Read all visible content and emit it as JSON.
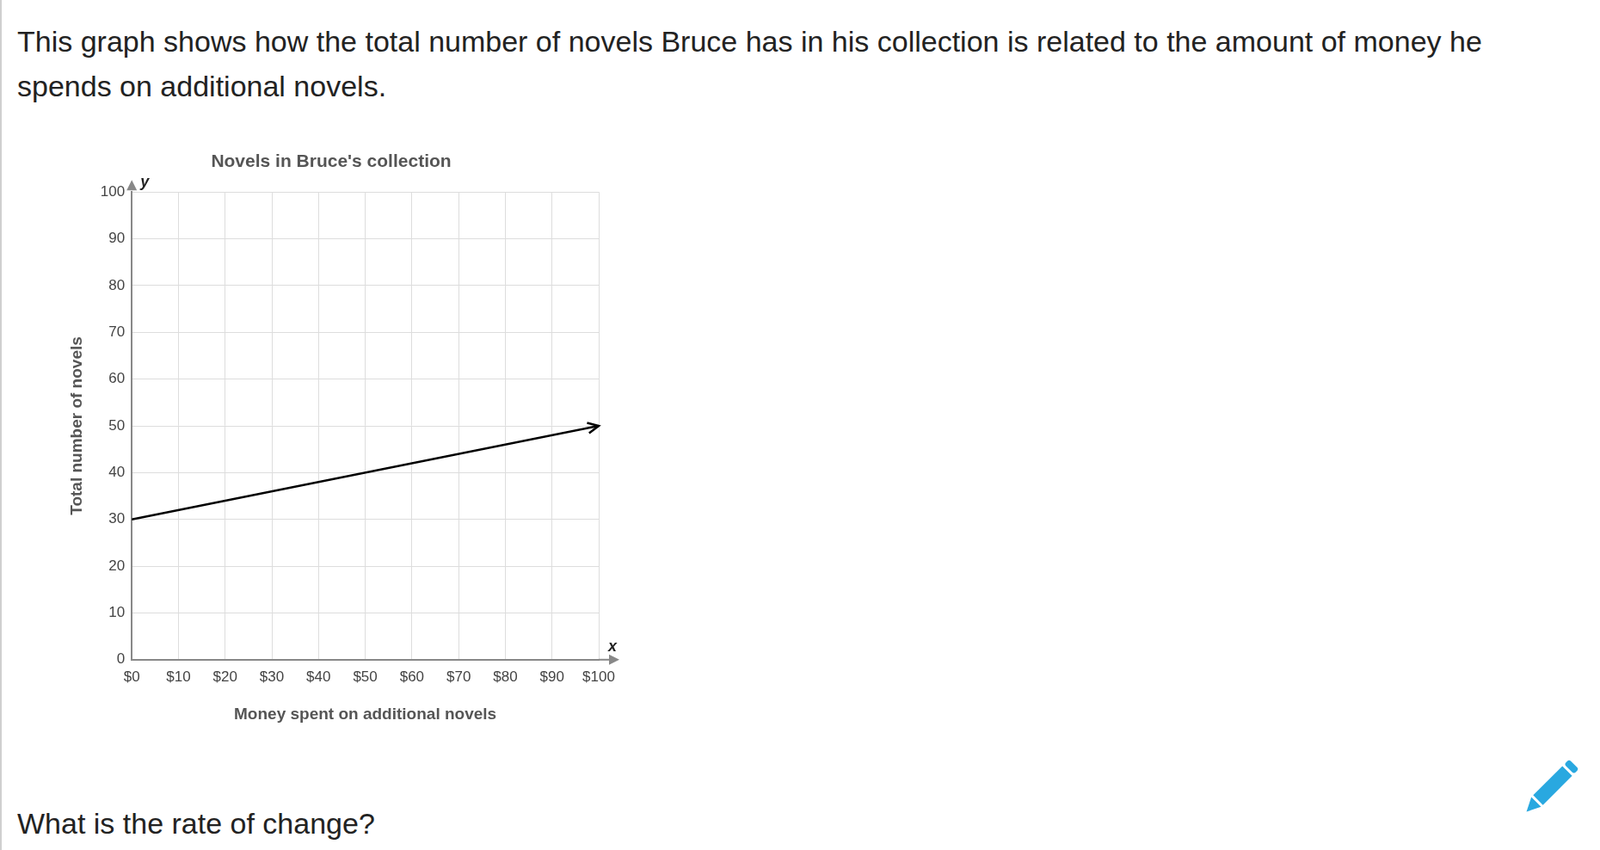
{
  "page": {
    "intro": "This graph shows how the total number of novels Bruce has in his collection is related to the amount of money he spends on additional novels.",
    "question": "What is the rate of change?"
  },
  "chart_data": {
    "type": "line",
    "title": "Novels in Bruce's collection",
    "x_label": "Money spent on additional novels",
    "y_label": "Total number of novels",
    "x_axis_name": "x",
    "y_axis_name": "y",
    "x": [
      0,
      100
    ],
    "values": [
      30,
      50
    ],
    "color": "#000000",
    "xlim": [
      0,
      100
    ],
    "xticks": [
      {
        "value": 0,
        "label": "$0"
      },
      {
        "value": 10,
        "label": "$10"
      },
      {
        "value": 20,
        "label": "$20"
      },
      {
        "value": 30,
        "label": "$30"
      },
      {
        "value": 40,
        "label": "$40"
      },
      {
        "value": 50,
        "label": "$50"
      },
      {
        "value": 60,
        "label": "$60"
      },
      {
        "value": 70,
        "label": "$70"
      },
      {
        "value": 80,
        "label": "$80"
      },
      {
        "value": 90,
        "label": "$90"
      },
      {
        "value": 100,
        "label": "$100"
      }
    ],
    "ylim": [
      0,
      100
    ],
    "yticks": [
      0,
      10,
      20,
      30,
      40,
      50,
      60,
      70,
      80,
      90,
      100
    ],
    "grid": true
  }
}
